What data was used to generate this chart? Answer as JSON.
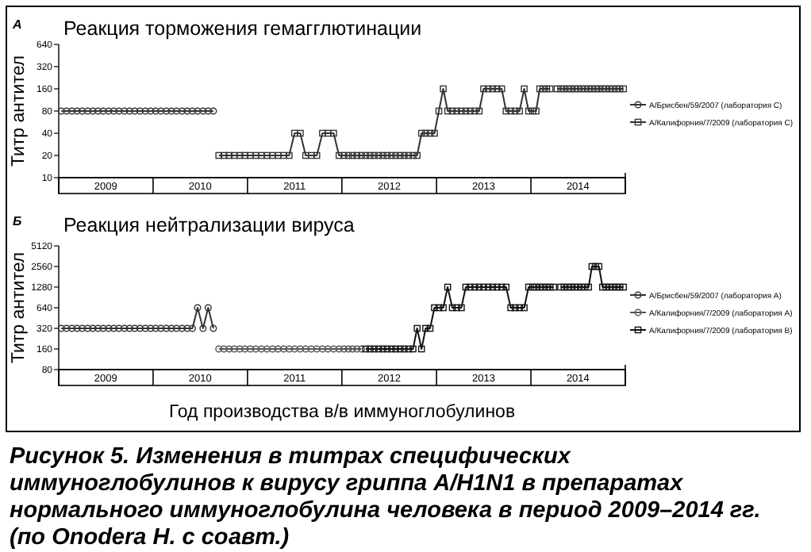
{
  "chart_data": [
    {
      "type": "line",
      "title": "Реакция торможения гемагглютинации",
      "ylabel": "Титр антител",
      "log": true,
      "ylim": [
        10,
        640
      ],
      "yticks": [
        10,
        20,
        40,
        80,
        160,
        320,
        640
      ],
      "xlim": [
        "2009-01-01",
        "2015-01-01"
      ],
      "xticks": [
        {
          "value": "2009-01-01",
          "label": null
        },
        {
          "value": "2009-07-02",
          "label": "2009"
        },
        {
          "value": "2010-01-01",
          "label": null
        },
        {
          "value": "2010-07-02",
          "label": "2010"
        },
        {
          "value": "2011-01-01",
          "label": null
        },
        {
          "value": "2011-07-02",
          "label": "2011"
        },
        {
          "value": "2012-01-01",
          "label": null
        },
        {
          "value": "2012-07-02",
          "label": "2012"
        },
        {
          "value": "2013-01-01",
          "label": null
        },
        {
          "value": "2013-07-02",
          "label": "2013"
        },
        {
          "value": "2014-01-01",
          "label": null
        },
        {
          "value": "2014-07-02",
          "label": "2014"
        },
        {
          "value": "2015-01-01",
          "label": null
        }
      ],
      "legend": "right",
      "annotations": [
        "А"
      ],
      "grid": false,
      "series": [
        {
          "name": "A/Брисбен/59/2007 (лаборатория С)",
          "color": "#333333",
          "marker": "circle",
          "x": [
            "2009-01-11",
            "2009-01-31",
            "2009-02-21",
            "2009-03-13",
            "2009-04-02",
            "2009-04-23",
            "2009-05-13",
            "2009-06-02",
            "2009-06-22",
            "2009-07-13",
            "2009-08-02",
            "2009-08-22",
            "2009-09-12",
            "2009-10-02",
            "2009-10-22",
            "2009-11-11",
            "2009-12-02",
            "2009-12-22",
            "2010-01-11",
            "2010-01-31",
            "2010-02-21",
            "2010-03-13",
            "2010-04-02",
            "2010-04-23",
            "2010-05-13",
            "2010-06-02",
            "2010-06-22",
            "2010-07-13",
            "2010-08-02",
            "2010-08-22"
          ],
          "values": [
            80,
            80,
            80,
            80,
            80,
            80,
            80,
            80,
            80,
            80,
            80,
            80,
            80,
            80,
            80,
            80,
            80,
            80,
            80,
            80,
            80,
            80,
            80,
            80,
            80,
            80,
            80,
            80,
            80,
            80
          ]
        },
        {
          "name": "A/Калифорния/7/2009 (лаборатория С)",
          "color": "#333333",
          "marker": "square",
          "x": [
            "2010-09-12",
            "2010-10-02",
            "2010-10-22",
            "2010-11-11",
            "2010-12-02",
            "2010-12-22",
            "2011-01-12",
            "2011-02-02",
            "2011-02-24",
            "2011-03-17",
            "2011-04-08",
            "2011-04-29",
            "2011-05-21",
            "2011-06-11",
            "2011-07-02",
            "2011-07-24",
            "2011-08-14",
            "2011-09-05",
            "2011-09-26",
            "2011-10-18",
            "2011-11-08",
            "2011-11-30",
            "2011-12-21",
            "2012-01-09",
            "2012-01-26",
            "2012-02-11",
            "2012-02-28",
            "2012-03-17",
            "2012-04-02",
            "2012-04-19",
            "2012-05-05",
            "2012-05-22",
            "2012-06-08",
            "2012-06-24",
            "2012-07-11",
            "2012-07-27",
            "2012-08-13",
            "2012-08-29",
            "2012-09-15",
            "2012-10-02",
            "2012-10-18",
            "2012-11-04",
            "2012-11-20",
            "2012-12-07",
            "2012-12-24",
            "2013-01-10",
            "2013-01-27",
            "2013-02-13",
            "2013-03-03",
            "2013-03-20",
            "2013-04-07",
            "2013-04-24",
            "2013-05-11",
            "2013-05-29",
            "2013-06-15",
            "2013-07-02",
            "2013-07-20",
            "2013-08-06",
            "2013-08-23",
            "2013-09-10",
            "2013-09-27",
            "2013-10-15",
            "2013-11-01",
            "2013-11-18",
            "2013-12-06",
            "2013-12-23",
            "2014-01-08",
            "2014-01-21",
            "2014-02-04",
            "2014-02-17",
            "2014-03-03",
            "2014-03-16",
            "2014-03-30",
            "2014-04-12",
            "2014-04-26",
            "2014-05-09",
            "2014-05-23",
            "2014-06-05",
            "2014-06-19",
            "2014-07-02",
            "2014-07-16",
            "2014-07-29",
            "2014-08-12",
            "2014-08-25",
            "2014-09-08",
            "2014-09-21",
            "2014-10-05",
            "2014-10-18",
            "2014-11-01",
            "2014-11-14",
            "2014-11-28",
            "2014-12-11",
            "2014-12-25"
          ],
          "values": [
            20,
            20,
            20,
            20,
            20,
            20,
            20,
            20,
            20,
            20,
            20,
            20,
            20,
            20,
            40,
            40,
            20,
            20,
            20,
            40,
            40,
            40,
            20,
            20,
            20,
            20,
            20,
            20,
            20,
            20,
            20,
            20,
            20,
            20,
            20,
            20,
            20,
            20,
            20,
            20,
            20,
            40,
            40,
            40,
            40,
            80,
            160,
            80,
            80,
            80,
            80,
            80,
            80,
            80,
            80,
            160,
            160,
            160,
            160,
            160,
            80,
            80,
            80,
            80,
            160,
            80,
            80,
            80,
            160,
            160,
            160,
            160,
            null,
            160,
            160,
            160,
            160,
            160,
            160,
            160,
            160,
            160,
            160,
            160,
            160,
            160,
            160,
            160,
            160,
            160,
            160,
            160,
            160
          ]
        }
      ]
    },
    {
      "type": "line",
      "title": "Реакция нейтрализации вируса",
      "ylabel": "Титр антител",
      "xlabel": "Год производства в/в иммуноглобулинов",
      "log": true,
      "ylim": [
        80,
        5120
      ],
      "yticks": [
        80,
        160,
        320,
        640,
        1280,
        2560,
        5120
      ],
      "xlim": [
        "2009-01-01",
        "2015-01-01"
      ],
      "xticks": [
        {
          "value": "2009-01-01",
          "label": null
        },
        {
          "value": "2009-07-02",
          "label": "2009"
        },
        {
          "value": "2010-01-01",
          "label": null
        },
        {
          "value": "2010-07-02",
          "label": "2010"
        },
        {
          "value": "2011-01-01",
          "label": null
        },
        {
          "value": "2011-07-02",
          "label": "2011"
        },
        {
          "value": "2012-01-01",
          "label": null
        },
        {
          "value": "2012-07-02",
          "label": "2012"
        },
        {
          "value": "2013-01-01",
          "label": null
        },
        {
          "value": "2013-07-02",
          "label": "2013"
        },
        {
          "value": "2014-01-01",
          "label": null
        },
        {
          "value": "2014-07-02",
          "label": "2014"
        },
        {
          "value": "2015-01-01",
          "label": null
        }
      ],
      "legend": "right",
      "annotations": [
        "Б",
        "Рисунок 5. Изменения в титрах специфических иммуноглобулинов к вирусу гриппа A/H1N1 в препаратах нормального иммуноглобулина человека в период 2009–2014 гг. (по Onodera H. с соавт.)"
      ],
      "grid": false,
      "series": [
        {
          "name": "A/Брисбен/59/2007 (лаборатория А)",
          "color": "#333333",
          "marker": "circle",
          "x": [
            "2009-01-11",
            "2009-01-31",
            "2009-02-21",
            "2009-03-13",
            "2009-04-02",
            "2009-04-23",
            "2009-05-13",
            "2009-06-02",
            "2009-06-22",
            "2009-07-13",
            "2009-08-02",
            "2009-08-22",
            "2009-09-12",
            "2009-10-02",
            "2009-10-22",
            "2009-11-11",
            "2009-12-02",
            "2009-12-22",
            "2010-01-11",
            "2010-01-31",
            "2010-02-21",
            "2010-03-13",
            "2010-04-02",
            "2010-04-23",
            "2010-05-13",
            "2010-06-02",
            "2010-06-22",
            "2010-07-13",
            "2010-08-02",
            "2010-08-22"
          ],
          "values": [
            320,
            320,
            320,
            320,
            320,
            320,
            320,
            320,
            320,
            320,
            320,
            320,
            320,
            320,
            320,
            320,
            320,
            320,
            320,
            320,
            320,
            320,
            320,
            320,
            320,
            320,
            640,
            320,
            640,
            320
          ]
        },
        {
          "name": "A/Калифорния/7/2009 (лаборатория А)",
          "color": "#555555",
          "marker": "circle",
          "x": [
            "2010-09-12",
            "2010-10-02",
            "2010-10-22",
            "2010-11-11",
            "2010-12-02",
            "2010-12-22",
            "2011-01-12",
            "2011-02-02",
            "2011-02-24",
            "2011-03-17",
            "2011-04-08",
            "2011-04-29",
            "2011-05-21",
            "2011-06-11",
            "2011-07-02",
            "2011-07-24",
            "2011-08-14",
            "2011-09-05",
            "2011-09-26",
            "2011-10-18",
            "2011-11-08",
            "2011-11-30",
            "2011-12-21",
            "2012-01-09",
            "2012-01-26",
            "2012-02-11",
            "2012-02-28",
            "2012-03-17"
          ],
          "values": [
            160,
            160,
            160,
            160,
            160,
            160,
            160,
            160,
            160,
            160,
            160,
            160,
            160,
            160,
            160,
            160,
            160,
            160,
            160,
            160,
            160,
            160,
            160,
            160,
            160,
            160,
            160,
            160
          ]
        },
        {
          "name": "A/Калифорния/7/2009 (лаборатория В)",
          "color": "#111111",
          "marker": "square",
          "x": [
            "2012-04-02",
            "2012-04-19",
            "2012-05-05",
            "2012-05-22",
            "2012-06-08",
            "2012-06-24",
            "2012-07-11",
            "2012-07-27",
            "2012-08-13",
            "2012-08-29",
            "2012-09-15",
            "2012-10-02",
            "2012-10-18",
            "2012-11-04",
            "2012-11-20",
            "2012-12-07",
            "2012-12-24",
            "2013-01-10",
            "2013-01-27",
            "2013-02-13",
            "2013-03-03",
            "2013-03-20",
            "2013-04-07",
            "2013-04-24",
            "2013-05-11",
            "2013-05-29",
            "2013-06-15",
            "2013-07-02",
            "2013-07-20",
            "2013-08-06",
            "2013-08-23",
            "2013-09-10",
            "2013-09-27",
            "2013-10-15",
            "2013-11-01",
            "2013-11-18",
            "2013-12-06",
            "2013-12-23",
            "2014-01-08",
            "2014-01-21",
            "2014-02-04",
            "2014-02-17",
            "2014-03-03",
            "2014-03-16",
            "2014-03-30",
            "2014-04-12",
            "2014-04-26",
            "2014-05-09",
            "2014-05-23",
            "2014-06-05",
            "2014-06-19",
            "2014-07-02",
            "2014-07-16",
            "2014-07-29",
            "2014-08-12",
            "2014-08-25",
            "2014-09-08",
            "2014-09-21",
            "2014-10-05",
            "2014-10-18",
            "2014-11-01",
            "2014-11-14",
            "2014-11-28",
            "2014-12-11",
            "2014-12-25"
          ],
          "values": [
            160,
            160,
            160,
            160,
            160,
            160,
            160,
            160,
            160,
            160,
            160,
            160,
            320,
            160,
            320,
            320,
            640,
            640,
            640,
            1280,
            640,
            640,
            640,
            1280,
            1280,
            1280,
            1280,
            1280,
            1280,
            1280,
            1280,
            1280,
            1280,
            640,
            640,
            640,
            640,
            1280,
            1280,
            1280,
            1280,
            1280,
            1280,
            1280,
            1280,
            null,
            1280,
            1280,
            1280,
            1280,
            1280,
            1280,
            1280,
            1280,
            1280,
            2560,
            2560,
            2560,
            1280,
            1280,
            1280,
            1280,
            1280,
            1280,
            1280
          ]
        }
      ]
    }
  ]
}
